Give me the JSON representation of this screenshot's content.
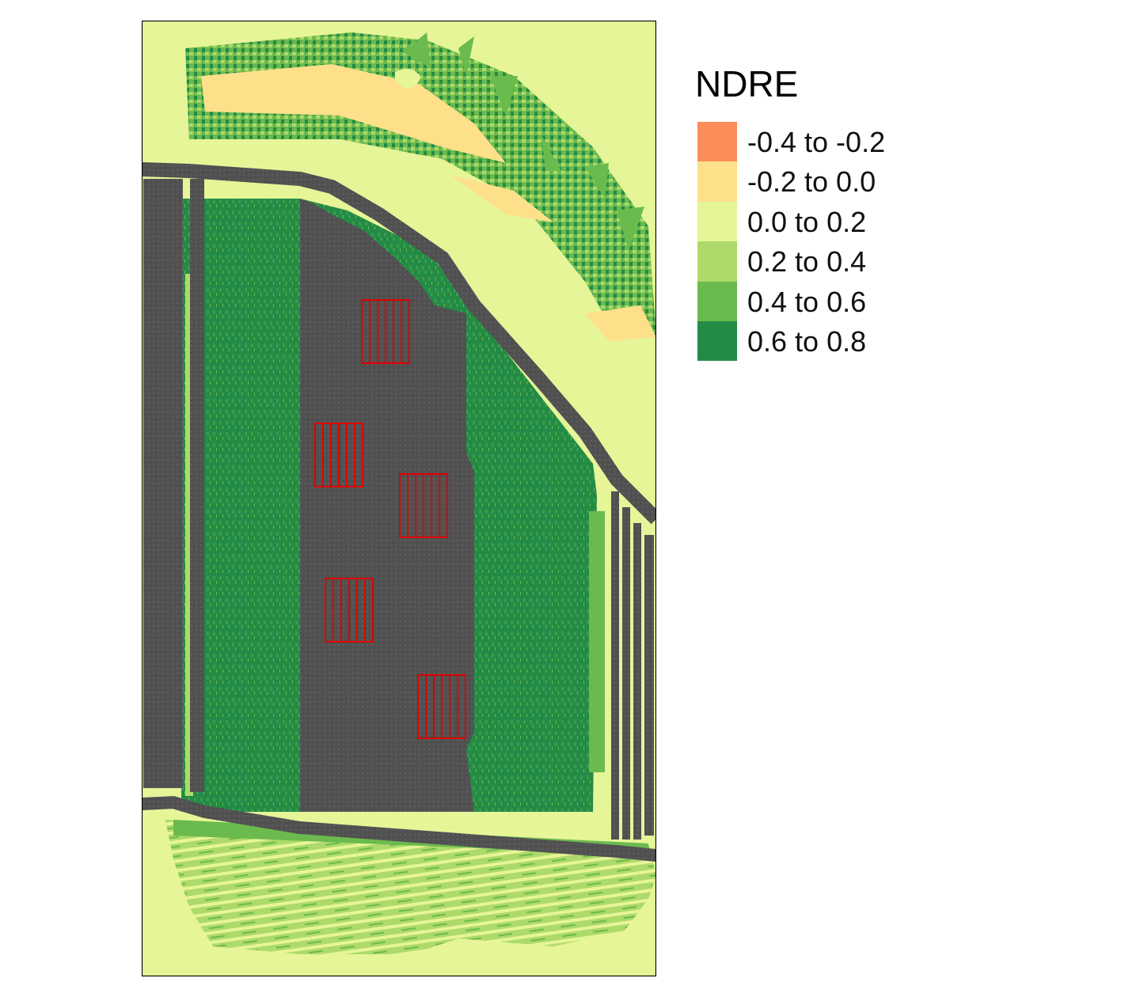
{
  "legend": {
    "title": "NDRE",
    "items": [
      {
        "label": "-0.4 to -0.2",
        "color": "#FC8D59"
      },
      {
        "label": "-0.2 to 0.0",
        "color": "#FEE08B"
      },
      {
        "label": "0.0 to 0.2",
        "color": "#E6F598"
      },
      {
        "label": "0.2 to 0.4",
        "color": "#ADDA6A"
      },
      {
        "label": "0.4 to 0.6",
        "color": "#6BBA4E"
      },
      {
        "label": "0.6 to 0.8",
        "color": "#238B45"
      }
    ]
  },
  "map": {
    "background_class": "0.0 to 0.2",
    "track_color": "#505050",
    "plot_outline_color": "#E00000",
    "plot_groups": 5,
    "plots_per_group": 6
  }
}
